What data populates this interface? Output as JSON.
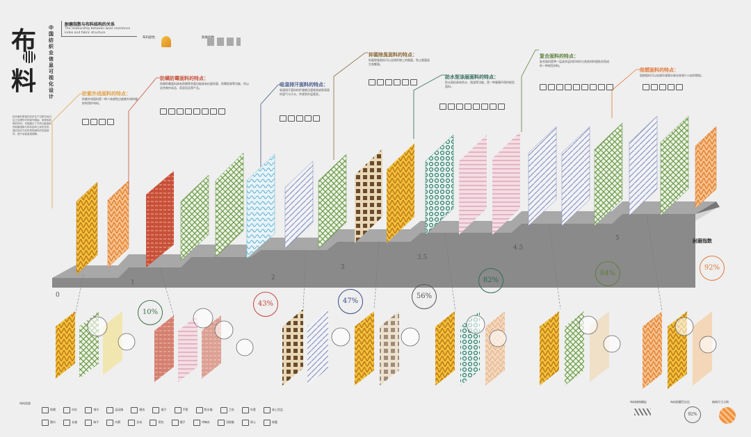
{
  "title": {
    "chars": [
      "布",
      "料"
    ],
    "vertical": "中国纺织业信息可视化设计",
    "intro": "纺织面料是指在纺织生产过程中经过加工处理的可供制作服装、家居用品等的材料。本图展示了不同功能面料的耐磨指数与布料结构之间的关系，通过色彩与纹样表现面料的性能差异，便于读者直观理解。"
  },
  "header": {
    "title_cn": "耐磨指数与布料结构的关系",
    "title_en": "The relationship between wear resistance index and fabric structure"
  },
  "top_legend": {
    "fabric_color_label": "布料颜色",
    "wear_index_label": "耐磨指数"
  },
  "features": [
    {
      "heading": "防紫外线面料的特点：",
      "body": "防紫外线面料是一种人体避免过度紫外线的辐射的保护材料。",
      "color": "#e0a24a"
    },
    {
      "heading": "防螨防霉面料的特点：",
      "body": "防螨防霉面料具有防螨等杀菌功能具有抗菌杀菌、防霉防臭等功能，所以适合制作床品、家居用品等产品。",
      "color": "#c8513a"
    },
    {
      "heading": "吸湿排汗面料的特点：",
      "body": "吸湿排汗面料的纤维能迅速吸收皮肤表面的湿气与汗水，传递到外层蒸发。",
      "color": "#4a5a8c"
    },
    {
      "heading": "抑菌除臭面料的特点：",
      "body": "抑菌除臭面料可以去除织物上的细菌，防止细菌滋生和繁殖。",
      "color": "#8a6a3a"
    },
    {
      "heading": "防水型涂层面料的特点：",
      "body": "防水面料具有防水、透湿等功能，是一种健康环保的新型面料。",
      "color": "#2f6a5a"
    },
    {
      "heading": "复合面料的特点：",
      "body": "复合面料是将一层或多层纺织材料与其他材料相粘合而成的一种新型材料。",
      "color": "#5e7d3a"
    },
    {
      "heading": "阻燃面料的特点：",
      "body": "阻燃面料可以加速纤维脱水碳化来减少火焰的燃烧。",
      "color": "#e07a3a"
    }
  ],
  "steps": [
    "0",
    "1",
    "2",
    "3",
    "3.5",
    "4.5",
    "5"
  ],
  "axis_label": "耐磨指数",
  "percentages": [
    {
      "value": "10%",
      "color": "#3f6f4a"
    },
    {
      "value": "43%",
      "color": "#c8413a"
    },
    {
      "value": "47%",
      "color": "#3a4a8a"
    },
    {
      "value": "56%",
      "color": "#555555"
    },
    {
      "value": "82%",
      "color": "#2f6a5a"
    },
    {
      "value": "84%",
      "color": "#5e7d3a"
    },
    {
      "value": "92%",
      "color": "#e07a3a"
    }
  ],
  "bottom_legend": {
    "label": "布料用途",
    "row1": [
      "防晒",
      "衬衫",
      "领巾",
      "运动服",
      "睡衣",
      "裙子",
      "手套",
      "防水服",
      "卫衣",
      "外套",
      "床上用品"
    ],
    "row2": [
      "围巾",
      "长袖",
      "袜子",
      "内裤",
      "泳衣",
      "背包",
      "帽子",
      "冲锋衣",
      "羽绒服",
      "背心",
      "帐篷"
    ]
  },
  "bottom_right_legend": {
    "structure_label": "布料结构概括",
    "ratio_label": "布料耐磨百分比",
    "ratio_value": "92%",
    "scale_label": "结构尺寸示例"
  },
  "colors": {
    "yellow": "#f2c23a",
    "red": "#c8513a",
    "green": "#6a9a4a",
    "blue": "#5a8ab8",
    "brown": "#6a4a2a",
    "pink": "#e0a0b0",
    "orange": "#f0903a"
  }
}
